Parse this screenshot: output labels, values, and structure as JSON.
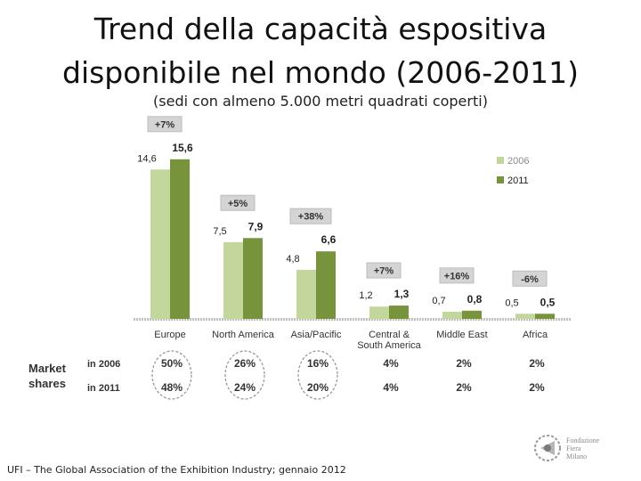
{
  "title": {
    "line1": "Trend della capacità espositiva",
    "line2": "disponibile nel mondo (2006-2011)"
  },
  "subtitle": "(sedi con almeno 5.000 metri quadrati coperti)",
  "footer": "UFI – The Global Association of the Exhibition Industry; gennaio 2012",
  "logo": {
    "line1": "Fondazione",
    "line2": "Fiera",
    "line3": "Milano"
  },
  "colors": {
    "y2006": "#c3d69b",
    "y2011": "#77933c",
    "badge": "#d4d4d4"
  },
  "chart_data": {
    "type": "bar",
    "categories": [
      "Europe",
      "North America",
      "Asia/Pacific",
      "Central & South America",
      "Middle East",
      "Africa"
    ],
    "category_lines": [
      [
        "Europe"
      ],
      [
        "North America"
      ],
      [
        "Asia/Pacific"
      ],
      [
        "Central &",
        "South America"
      ],
      [
        "Middle East"
      ],
      [
        "Africa"
      ]
    ],
    "series": [
      {
        "name": "2006",
        "values": [
          14.6,
          7.5,
          4.8,
          1.2,
          0.7,
          0.5
        ],
        "labels": [
          "14,6",
          "7,5",
          "4,8",
          "1,2",
          "0,7",
          "0,5"
        ]
      },
      {
        "name": "2011",
        "values": [
          15.6,
          7.9,
          6.6,
          1.3,
          0.8,
          0.5
        ],
        "labels": [
          "15,6",
          "7,9",
          "6,6",
          "1,3",
          "0,8",
          "0,5"
        ]
      }
    ],
    "growth": [
      "+7%",
      "+5%",
      "+38%",
      "+7%",
      "+16%",
      "-6%"
    ],
    "ylim": [
      0,
      17.5
    ],
    "legend_position": "top-right",
    "market_shares": {
      "title_lines": [
        "Market",
        "shares"
      ],
      "rows": [
        {
          "label": "in 2006",
          "values": [
            "50%",
            "26%",
            "16%",
            "4%",
            "2%",
            "2%"
          ]
        },
        {
          "label": "in 2011",
          "values": [
            "48%",
            "24%",
            "20%",
            "4%",
            "2%",
            "2%"
          ]
        }
      ],
      "circled_columns": [
        0,
        1,
        2
      ]
    }
  }
}
